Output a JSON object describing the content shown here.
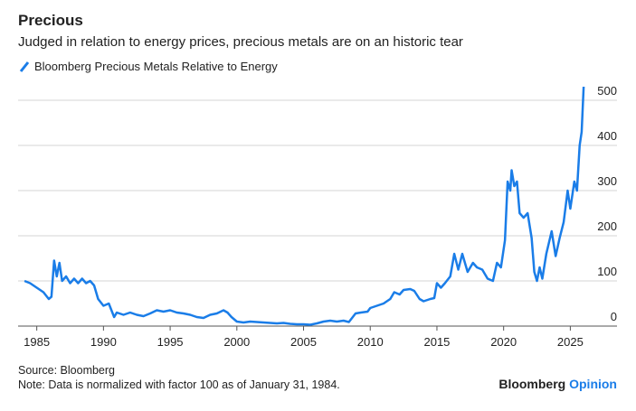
{
  "chart_data": {
    "type": "line",
    "title": "Precious",
    "subtitle": "Judged in relation to energy prices, precious metals are on an historic tear",
    "source": "Source: Bloomberg",
    "note": "Note: Data is normalized with factor 100 as of January 31, 1984.",
    "brand": {
      "name": "Bloomberg",
      "suffix": "Opinion"
    },
    "x": [
      1984.08,
      1984.5,
      1985,
      1985.5,
      1985.9,
      1986.1,
      1986.3,
      1986.5,
      1986.7,
      1986.9,
      1987.2,
      1987.5,
      1987.8,
      1988.1,
      1988.4,
      1988.7,
      1989,
      1989.3,
      1989.6,
      1990,
      1990.4,
      1990.6,
      1990.8,
      1991,
      1991.5,
      1992,
      1992.5,
      1993,
      1993.5,
      1994,
      1994.5,
      1995,
      1995.5,
      1996,
      1996.5,
      1997,
      1997.5,
      1998,
      1998.5,
      1999,
      1999.3,
      1999.6,
      2000,
      2000.5,
      2001,
      2001.5,
      2002,
      2002.5,
      2003,
      2003.5,
      2004,
      2004.5,
      2005,
      2005.5,
      2006,
      2006.5,
      2007,
      2007.5,
      2008,
      2008.4,
      2008.9,
      2009.3,
      2009.8,
      2010,
      2010.5,
      2011,
      2011.5,
      2011.8,
      2012.2,
      2012.5,
      2013,
      2013.3,
      2013.7,
      2014,
      2014.5,
      2014.8,
      2015,
      2015.3,
      2015.6,
      2016,
      2016.3,
      2016.6,
      2016.9,
      2017.3,
      2017.7,
      2018,
      2018.4,
      2018.8,
      2019.2,
      2019.5,
      2019.8,
      2020.1,
      2020.3,
      2020.5,
      2020.6,
      2020.8,
      2021,
      2021.2,
      2021.5,
      2021.8,
      2022.1,
      2022.3,
      2022.5,
      2022.7,
      2022.9,
      2023.2,
      2023.6,
      2023.9,
      2024.2,
      2024.5,
      2024.8,
      2025,
      2025.3,
      2025.5,
      2025.7,
      2025.85,
      2026
    ],
    "series": [
      {
        "name": "Bloomberg Precious Metals Relative to Energy",
        "color": "#1a7de8",
        "values": [
          100,
          95,
          85,
          75,
          60,
          65,
          145,
          110,
          140,
          100,
          110,
          95,
          105,
          95,
          105,
          95,
          100,
          90,
          60,
          45,
          50,
          35,
          20,
          30,
          25,
          30,
          25,
          22,
          28,
          35,
          32,
          35,
          30,
          28,
          25,
          20,
          18,
          25,
          28,
          35,
          30,
          20,
          10,
          8,
          10,
          9,
          8,
          7,
          6,
          7,
          5,
          4,
          4,
          3,
          6,
          10,
          12,
          10,
          12,
          9,
          28,
          30,
          32,
          40,
          45,
          50,
          60,
          75,
          70,
          80,
          82,
          78,
          60,
          55,
          60,
          62,
          95,
          85,
          95,
          110,
          160,
          125,
          160,
          120,
          140,
          130,
          125,
          105,
          100,
          140,
          130,
          190,
          320,
          300,
          345,
          310,
          320,
          250,
          240,
          250,
          195,
          120,
          100,
          130,
          105,
          160,
          210,
          155,
          195,
          230,
          300,
          260,
          320,
          300,
          400,
          430,
          530
        ]
      }
    ],
    "xlim": [
      1983.6,
      2028.5
    ],
    "xticks": [
      1985,
      1990,
      1995,
      2000,
      2005,
      2010,
      2015,
      2020,
      2025
    ],
    "ylim": [
      0,
      540
    ],
    "yticks": [
      0,
      100,
      200,
      300,
      400,
      500
    ],
    "grid": true
  }
}
